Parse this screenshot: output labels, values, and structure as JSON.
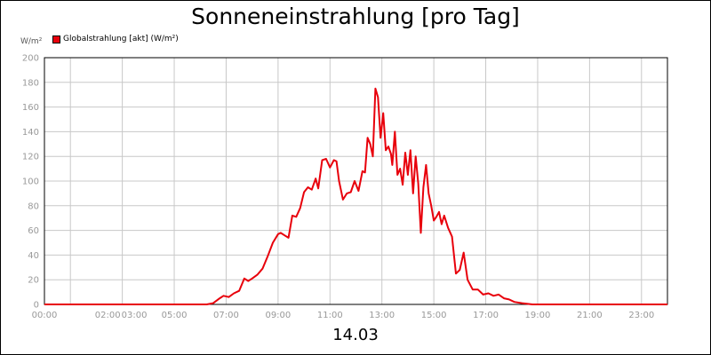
{
  "title": "Sonneneinstrahlung [pro Tag]",
  "date_label": "14.03",
  "unit_label": "W/m²",
  "legend_label": "Globalstrahlung [akt] (W/m²)",
  "colors": {
    "series": "#e8000b",
    "grid": "#c8c8c8",
    "axis": "#000000",
    "tick_text": "#999999"
  },
  "chart_data": {
    "type": "line",
    "title": "Sonneneinstrahlung [pro Tag]",
    "xlabel": "14.03",
    "ylabel": "W/m²",
    "ylim": [
      0,
      200
    ],
    "xlim": [
      0,
      24
    ],
    "grid": true,
    "legend": "top-left",
    "y_ticks": [
      "0",
      "20",
      "40",
      "60",
      "80",
      "100",
      "120",
      "140",
      "160",
      "180",
      "200"
    ],
    "x_ticks": [
      "00:00",
      "02:00",
      "03:00",
      "05:00",
      "07:00",
      "09:00",
      "11:00",
      "13:00",
      "15:00",
      "17:00",
      "19:00",
      "21:00",
      "23:00"
    ],
    "series": [
      {
        "name": "Globalstrahlung [akt] (W/m²)",
        "x": [
          0,
          6.25,
          6.5,
          6.75,
          6.9,
          7.1,
          7.3,
          7.5,
          7.7,
          7.85,
          8.0,
          8.2,
          8.4,
          8.6,
          8.8,
          9.0,
          9.1,
          9.25,
          9.4,
          9.55,
          9.7,
          9.85,
          10.0,
          10.15,
          10.3,
          10.45,
          10.55,
          10.7,
          10.85,
          11.0,
          11.15,
          11.25,
          11.35,
          11.5,
          11.65,
          11.8,
          11.95,
          12.1,
          12.25,
          12.35,
          12.45,
          12.55,
          12.65,
          12.75,
          12.85,
          12.95,
          13.05,
          13.15,
          13.25,
          13.35,
          13.4,
          13.5,
          13.6,
          13.7,
          13.8,
          13.9,
          14.0,
          14.1,
          14.2,
          14.3,
          14.4,
          14.5,
          14.6,
          14.7,
          14.8,
          14.9,
          15.0,
          15.1,
          15.2,
          15.3,
          15.4,
          15.55,
          15.7,
          15.85,
          16.0,
          16.15,
          16.3,
          16.5,
          16.7,
          16.9,
          17.1,
          17.3,
          17.5,
          17.7,
          17.9,
          18.1,
          18.4,
          18.8,
          24
        ],
        "values": [
          0,
          0,
          1,
          5,
          7,
          6,
          9,
          11,
          21,
          19,
          21,
          24,
          29,
          39,
          50,
          57,
          58,
          56,
          54,
          72,
          71,
          78,
          91,
          95,
          93,
          102,
          94,
          117,
          118,
          111,
          117,
          116,
          100,
          85,
          90,
          91,
          100,
          92,
          108,
          107,
          135,
          130,
          120,
          175,
          168,
          135,
          155,
          125,
          128,
          122,
          113,
          140,
          105,
          110,
          97,
          123,
          105,
          125,
          90,
          120,
          98,
          58,
          95,
          113,
          90,
          80,
          68,
          71,
          75,
          65,
          72,
          62,
          55,
          25,
          28,
          42,
          20,
          12,
          12,
          8,
          9,
          7,
          8,
          5,
          4,
          2,
          1,
          0,
          0
        ]
      }
    ]
  }
}
